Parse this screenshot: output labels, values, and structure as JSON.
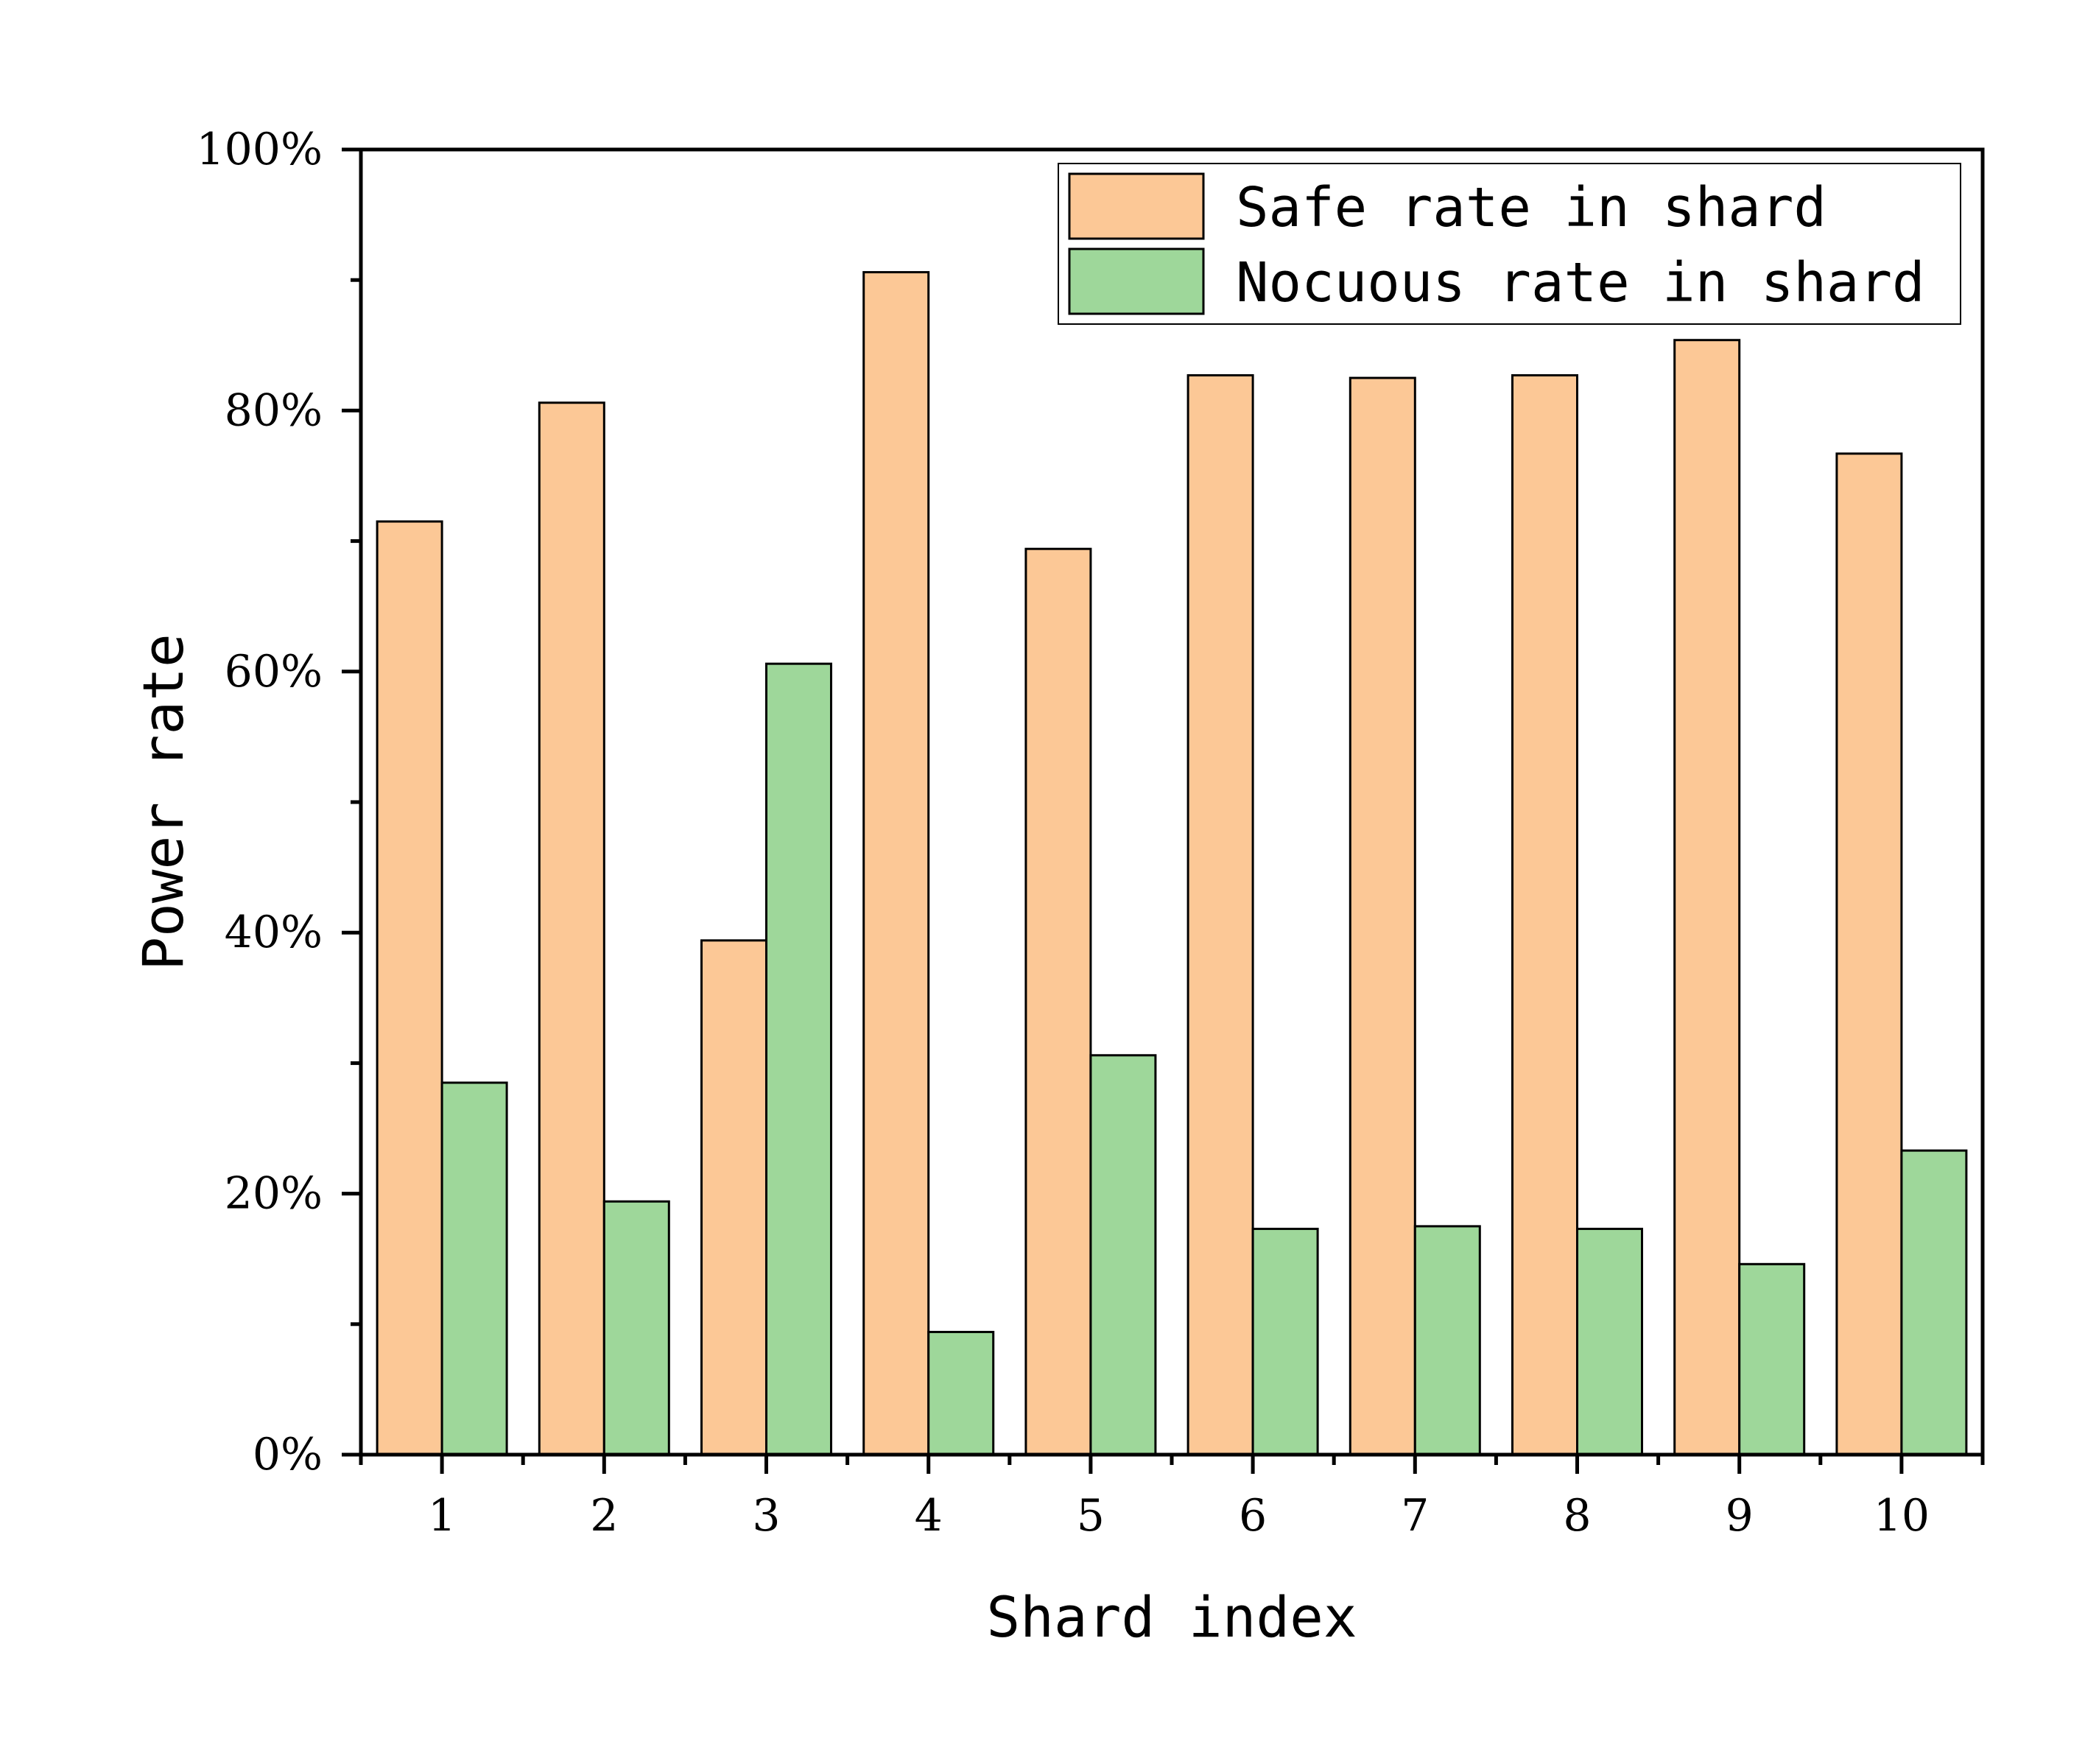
{
  "chart_data": {
    "type": "bar",
    "xlabel": "Shard index",
    "ylabel": "Power rate",
    "categories": [
      "1",
      "2",
      "3",
      "4",
      "5",
      "6",
      "7",
      "8",
      "9",
      "10"
    ],
    "yticks": [
      "0%",
      "20%",
      "40%",
      "60%",
      "80%",
      "100%"
    ],
    "ylim": [
      0,
      100
    ],
    "legend_position": "top-right",
    "series": [
      {
        "name": "Safe rate in shard",
        "color": "#FCC896",
        "values": [
          71.5,
          80.6,
          39.4,
          90.6,
          69.4,
          82.7,
          82.5,
          82.7,
          85.4,
          76.7
        ]
      },
      {
        "name": "Nocuous rate in shard",
        "color": "#9ED79A",
        "values": [
          28.5,
          19.4,
          60.6,
          9.4,
          30.6,
          17.3,
          17.5,
          17.3,
          14.6,
          23.3
        ]
      }
    ]
  }
}
